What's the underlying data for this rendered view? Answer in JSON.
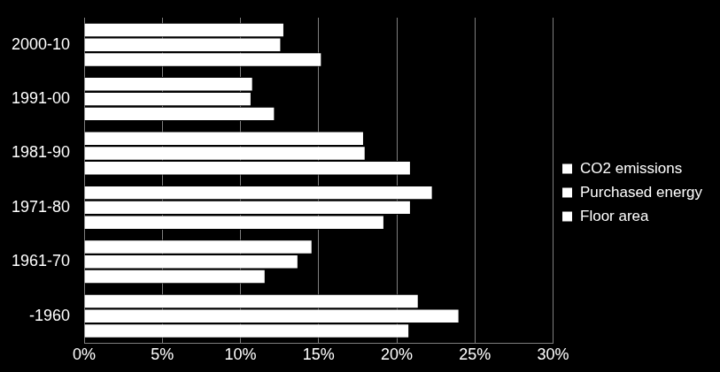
{
  "chart_data": {
    "type": "bar",
    "orientation": "horizontal",
    "categories": [
      "2000-10",
      "1991-00",
      "1981-90",
      "1971-80",
      "1961-70",
      "-1960"
    ],
    "series": [
      {
        "name": "CO2 emissions",
        "color": "#ffffff",
        "values": [
          12.8,
          10.8,
          17.9,
          22.3,
          14.6,
          21.4
        ]
      },
      {
        "name": "Purchased energy",
        "color": "#ffffff",
        "values": [
          12.6,
          10.7,
          18.0,
          20.9,
          13.7,
          24.0
        ]
      },
      {
        "name": "Floor area",
        "color": "#ffffff",
        "values": [
          15.2,
          12.2,
          20.9,
          19.2,
          11.6,
          20.8
        ]
      }
    ],
    "xlim": [
      0,
      30
    ],
    "xticks": [
      {
        "value": 0,
        "label": "0%"
      },
      {
        "value": 5,
        "label": "5%"
      },
      {
        "value": 10,
        "label": "10%"
      },
      {
        "value": 15,
        "label": "15%"
      },
      {
        "value": 20,
        "label": "20%"
      },
      {
        "value": 25,
        "label": "25%"
      },
      {
        "value": 30,
        "label": "30%"
      }
    ],
    "grid": true,
    "legend": "right"
  }
}
